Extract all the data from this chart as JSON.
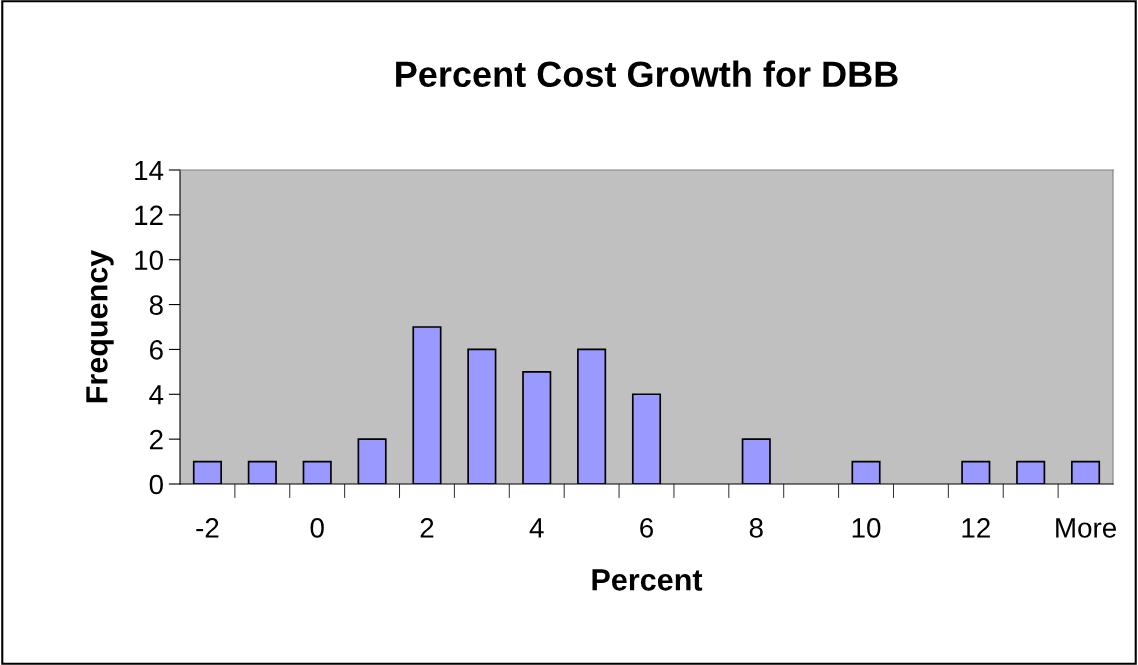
{
  "chart_data": {
    "type": "bar",
    "title": "Percent Cost Growth for DBB",
    "xlabel": "Percent",
    "ylabel": "Frequency",
    "categories": [
      "-2",
      null,
      "0",
      null,
      "2",
      null,
      "4",
      null,
      "6",
      null,
      "8",
      null,
      "10",
      null,
      "12",
      null,
      "More"
    ],
    "values": [
      1,
      1,
      1,
      2,
      7,
      6,
      5,
      6,
      4,
      0,
      2,
      0,
      1,
      0,
      1,
      1,
      1
    ],
    "color": "#9999ff",
    "ylim": [
      0,
      14
    ],
    "yticks": [
      0,
      2,
      4,
      6,
      8,
      10,
      12,
      14
    ],
    "grid": false,
    "legend": false
  }
}
